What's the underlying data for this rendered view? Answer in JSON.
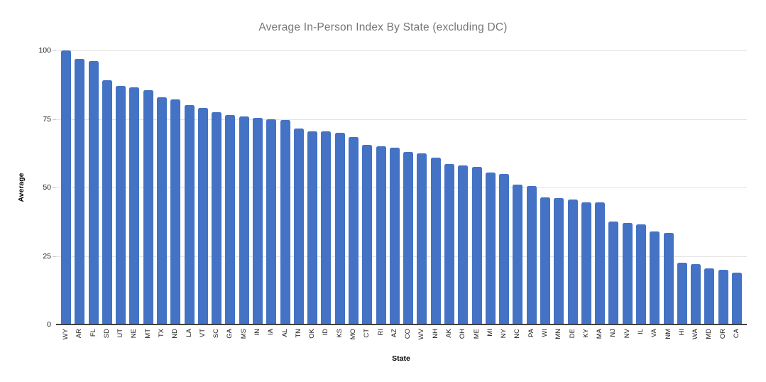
{
  "chart_data": {
    "type": "bar",
    "title": "Average In-Person Index By State (excluding DC)",
    "xlabel": "State",
    "ylabel": "Average",
    "ylim": [
      0,
      100
    ],
    "yticks": [
      0,
      25,
      50,
      75,
      100
    ],
    "grid": true,
    "legend": false,
    "colors": {
      "bar": "#4472C4",
      "title_text": "#757575",
      "gridline": "#e3e3e3",
      "axis_line": "#424242",
      "tick_text": "#1a1a1a"
    },
    "categories": [
      "WY",
      "AR",
      "FL",
      "SD",
      "UT",
      "NE",
      "MT",
      "TX",
      "ND",
      "LA",
      "VT",
      "SC",
      "GA",
      "MS",
      "IN",
      "IA",
      "AL",
      "TN",
      "OK",
      "ID",
      "KS",
      "MO",
      "CT",
      "RI",
      "AZ",
      "CO",
      "WV",
      "NH",
      "AK",
      "OH",
      "ME",
      "MI",
      "NY",
      "NC",
      "PA",
      "WI",
      "MN",
      "DE",
      "KY",
      "MA",
      "NJ",
      "NV",
      "IL",
      "VA",
      "NM",
      "HI",
      "WA",
      "MD",
      "OR",
      "CA"
    ],
    "values": [
      100,
      97,
      96,
      89,
      87,
      86.5,
      85.5,
      83,
      82,
      80,
      79,
      77.5,
      76.5,
      76,
      75.5,
      75,
      74.5,
      71.5,
      70.5,
      70.5,
      70,
      68.5,
      65.5,
      65,
      64.5,
      63,
      62.5,
      61,
      58.5,
      58,
      57.5,
      55.5,
      55,
      51,
      50.5,
      46.5,
      46,
      45.5,
      44.5,
      44.5,
      37.5,
      37,
      36.5,
      34,
      33.5,
      22.5,
      22,
      20.5,
      20,
      19
    ]
  }
}
